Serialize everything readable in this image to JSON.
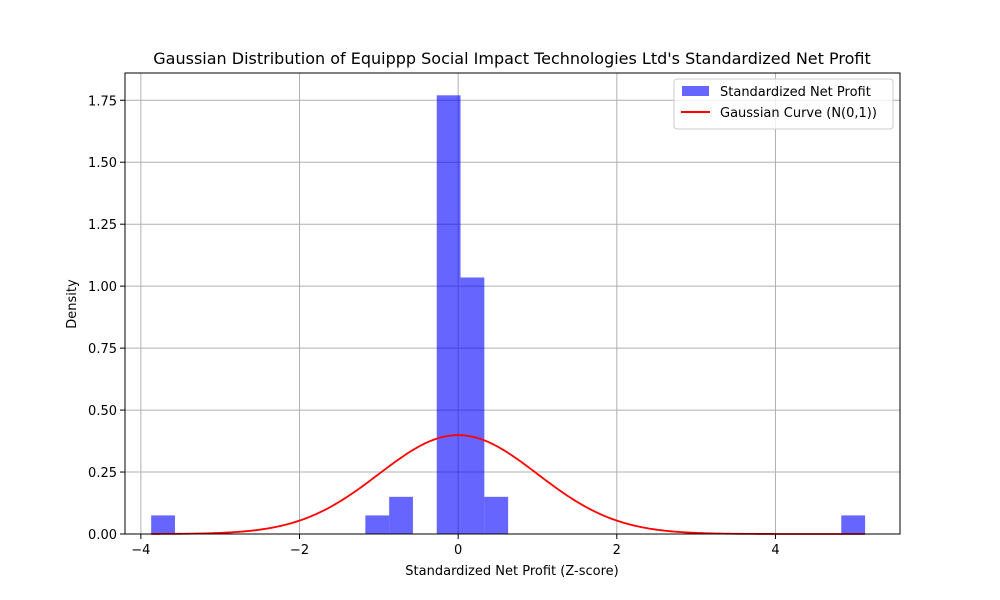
{
  "chart_data": {
    "type": "bar",
    "title": "Gaussian Distribution of Equippp Social Impact Technologies Ltd's Standardized Net Profit",
    "xlabel": "Standardized Net Profit (Z-score)",
    "ylabel": "Density",
    "xlim": [
      -4.2,
      5.57
    ],
    "ylim": [
      0,
      1.86
    ],
    "xticks": [
      -4,
      -2,
      0,
      2,
      4
    ],
    "xtick_labels": [
      "−4",
      "−2",
      "0",
      "2",
      "4"
    ],
    "yticks": [
      0,
      0.25,
      0.5,
      0.75,
      1.0,
      1.25,
      1.5,
      1.75
    ],
    "ytick_labels": [
      "0.00",
      "0.25",
      "0.50",
      "0.75",
      "1.00",
      "1.25",
      "1.50",
      "1.75"
    ],
    "grid": true,
    "legend_position": "top-right",
    "histogram": {
      "name": "Standardized Net Profit",
      "color": "#0000ff",
      "opacity": 0.6,
      "bin_start": -3.87,
      "bin_width": 0.3,
      "counts_density": [
        0.075,
        0,
        0,
        0,
        0,
        0,
        0,
        0,
        0,
        0.075,
        0.15,
        0,
        1.77,
        1.035,
        0.15,
        0,
        0,
        0,
        0,
        0,
        0,
        0,
        0,
        0,
        0,
        0,
        0,
        0,
        0,
        0.075
      ]
    },
    "curve": {
      "name": "Gaussian Curve (N(0,1))",
      "color": "#ff0000",
      "mean": 0,
      "std": 1,
      "x_start": -3.87,
      "x_end": 5.13
    }
  }
}
